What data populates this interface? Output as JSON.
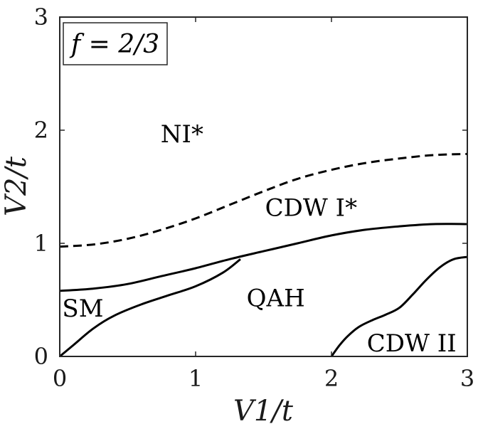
{
  "chart_data": {
    "type": "line",
    "title": "",
    "annotation_box": "f = 2/3",
    "xlabel": "V1/t",
    "ylabel": "V2/t",
    "xlim": [
      0,
      3
    ],
    "ylim": [
      0,
      3
    ],
    "xticks": [
      "0",
      "1",
      "2",
      "3"
    ],
    "yticks": [
      "0",
      "1",
      "2",
      "3"
    ],
    "grid": false,
    "region_labels": [
      {
        "text": "NI*",
        "x": 0.9,
        "y": 1.95
      },
      {
        "text": "CDW I*",
        "x": 1.85,
        "y": 1.3
      },
      {
        "text": "SM",
        "x": 0.17,
        "y": 0.41
      },
      {
        "text": "QAH",
        "x": 1.59,
        "y": 0.5
      },
      {
        "text": "CDW II",
        "x": 2.59,
        "y": 0.1
      }
    ],
    "series": [
      {
        "style": "dashed",
        "x": [
          0,
          0.25,
          0.5,
          0.75,
          1.0,
          1.25,
          1.5,
          1.75,
          2.0,
          2.25,
          2.5,
          2.75,
          3.0
        ],
        "y": [
          0.97,
          0.99,
          1.04,
          1.12,
          1.22,
          1.34,
          1.46,
          1.57,
          1.65,
          1.71,
          1.75,
          1.78,
          1.79
        ]
      },
      {
        "style": "solid",
        "x": [
          0,
          0.25,
          0.5,
          0.75,
          1.0,
          1.25,
          1.5,
          1.75,
          2.0,
          2.25,
          2.5,
          2.75,
          3.0
        ],
        "y": [
          0.58,
          0.6,
          0.64,
          0.71,
          0.78,
          0.86,
          0.93,
          1.0,
          1.07,
          1.12,
          1.15,
          1.17,
          1.17
        ]
      },
      {
        "style": "solid",
        "x": [
          0,
          0.1,
          0.25,
          0.4,
          0.6,
          0.8,
          1.0,
          1.2,
          1.33
        ],
        "y": [
          0,
          0.1,
          0.25,
          0.36,
          0.46,
          0.54,
          0.62,
          0.74,
          0.86
        ]
      },
      {
        "style": "solid",
        "x": [
          2.0,
          2.06,
          2.12,
          2.2,
          2.3,
          2.4,
          2.5,
          2.6,
          2.7,
          2.8,
          2.9,
          3.0
        ],
        "y": [
          0.0,
          0.1,
          0.18,
          0.26,
          0.32,
          0.37,
          0.43,
          0.55,
          0.68,
          0.79,
          0.86,
          0.88
        ]
      }
    ]
  }
}
